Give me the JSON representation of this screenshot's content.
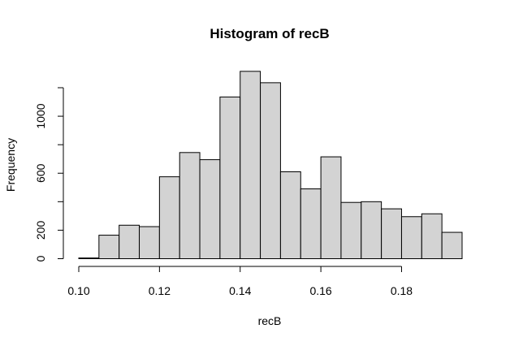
{
  "chart_data": {
    "type": "bar",
    "title": "Histogram of recB",
    "xlabel": "recB",
    "ylabel": "Frequency",
    "bin_width": 0.005,
    "bins": [
      [
        0.1,
        0.105
      ],
      [
        0.105,
        0.11
      ],
      [
        0.11,
        0.115
      ],
      [
        0.115,
        0.12
      ],
      [
        0.12,
        0.125
      ],
      [
        0.125,
        0.13
      ],
      [
        0.13,
        0.135
      ],
      [
        0.135,
        0.14
      ],
      [
        0.14,
        0.145
      ],
      [
        0.145,
        0.15
      ],
      [
        0.15,
        0.155
      ],
      [
        0.155,
        0.16
      ],
      [
        0.16,
        0.165
      ],
      [
        0.165,
        0.17
      ],
      [
        0.17,
        0.175
      ],
      [
        0.175,
        0.18
      ],
      [
        0.18,
        0.185
      ],
      [
        0.185,
        0.19
      ],
      [
        0.19,
        0.195
      ]
    ],
    "values": [
      5,
      165,
      235,
      225,
      575,
      745,
      695,
      1135,
      1315,
      1235,
      610,
      490,
      715,
      395,
      400,
      350,
      295,
      315,
      185
    ],
    "xlim": [
      0.1,
      0.195
    ],
    "ylim": [
      0,
      1200
    ],
    "x_ticks": [
      {
        "value": 0.1,
        "label": "0.10"
      },
      {
        "value": 0.12,
        "label": "0.12"
      },
      {
        "value": 0.14,
        "label": "0.14"
      },
      {
        "value": 0.16,
        "label": "0.16"
      },
      {
        "value": 0.18,
        "label": "0.18"
      }
    ],
    "y_ticks": [
      {
        "value": 0,
        "label": "0"
      },
      {
        "value": 200,
        "label": "200"
      },
      {
        "value": 400,
        "label": ""
      },
      {
        "value": 600,
        "label": "600"
      },
      {
        "value": 800,
        "label": ""
      },
      {
        "value": 1000,
        "label": "1000"
      },
      {
        "value": 1200,
        "label": ""
      }
    ],
    "bar_fill": "#d3d3d3",
    "bar_stroke": "#000000",
    "grid": false,
    "legend": "none"
  }
}
